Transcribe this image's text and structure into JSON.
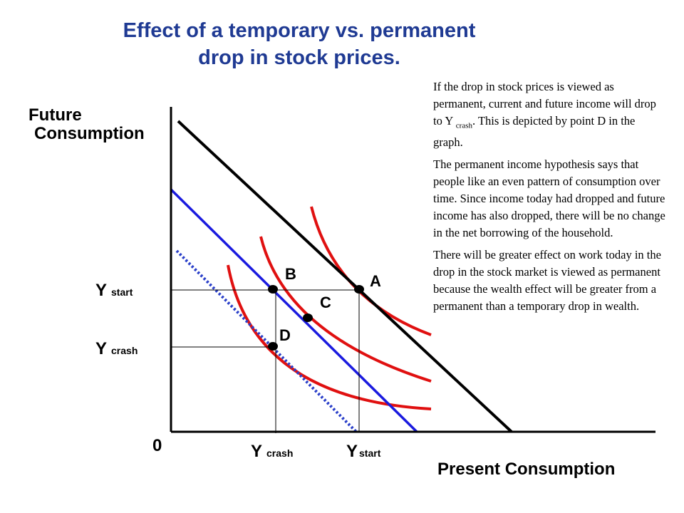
{
  "title_line1": "Effect of a temporary vs. permanent",
  "title_line2": "drop in stock prices.",
  "y_axis_label_line1": "Future",
  "y_axis_label_line2": "Consumption",
  "x_axis_label": "Present Consumption",
  "origin_label": "0",
  "y_ticks": {
    "start": {
      "main": "Y",
      "sub": "start"
    },
    "crash": {
      "main": "Y",
      "sub": "crash"
    }
  },
  "x_ticks": {
    "crash": {
      "main": "Y",
      "sub": "crash"
    },
    "start": {
      "main": "Y",
      "sub": "start"
    }
  },
  "points": {
    "A": "A",
    "B": "B",
    "C": "C",
    "D": "D"
  },
  "note": {
    "p1_before": "If the drop in stock prices is viewed as permanent, current  and future income will drop to Y ",
    "p1_sub": "crash",
    "p1_after": ". This is depicted by point D in the graph.",
    "p2": "The permanent income hypothesis says that people like an even pattern of consumption over time. Since income today had dropped and future income has also dropped, there will be no change in the net borrowing of the household.",
    "p3": "There will be greater effect on work today in the drop in the stock market is viewed as permanent because the wealth effect will be greater from a permanent than a temporary drop in wealth."
  },
  "colors": {
    "title": "#1f3a93",
    "budget_original": "#000000",
    "budget_temporary": "#1a1adf",
    "budget_permanent": "#2a3fc9",
    "indifference": "#e01010"
  }
}
